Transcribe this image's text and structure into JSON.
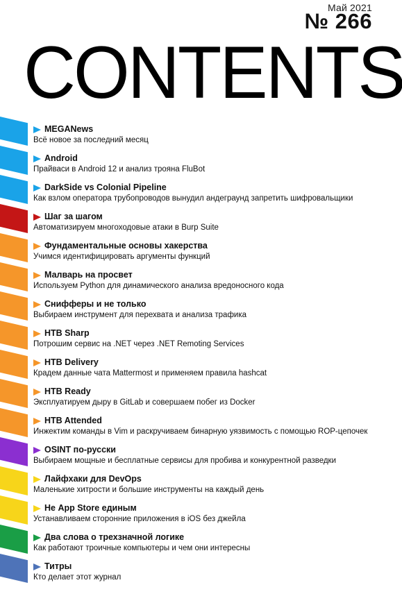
{
  "header": {
    "date": "Май 2021",
    "issue": "№ 266",
    "title": "CONTENTS"
  },
  "colors": {
    "blue": "#1aa3e8",
    "red": "#c41616",
    "orange": "#f5962a",
    "purple": "#8b2fd0",
    "yellow": "#f7d51a",
    "green": "#1a9e46",
    "slate": "#4e73b8"
  },
  "items": [
    {
      "title": "MEGANews",
      "subtitle": "Всё новое за последний месяц",
      "color": "#1aa3e8"
    },
    {
      "title": "Android",
      "subtitle": "Прайваси в Android 12 и анализ трояна FluBot",
      "color": "#1aa3e8"
    },
    {
      "title": "DarkSide vs Colonial Pipeline",
      "subtitle": "Как взлом оператора трубопроводов вынудил андеграунд запретить шифровальщики",
      "color": "#1aa3e8"
    },
    {
      "title": "Шаг за шагом",
      "subtitle": "Автоматизируем многоходовые атаки в Burp Suite",
      "color": "#c41616"
    },
    {
      "title": "Фундаментальные основы хакерства",
      "subtitle": "Учимся идентифицировать аргументы функций",
      "color": "#f5962a"
    },
    {
      "title": "Малварь на просвет",
      "subtitle": "Используем Python для динамического анализа вредоносного кода",
      "color": "#f5962a"
    },
    {
      "title": "Снифферы и не только",
      "subtitle": "Выбираем инструмент для перехвата и анализа трафика",
      "color": "#f5962a"
    },
    {
      "title": "HTB Sharp",
      "subtitle": "Потрошим сервис на .NET через .NET Remoting Services",
      "color": "#f5962a"
    },
    {
      "title": "HTB Delivery",
      "subtitle": "Крадем данные чата Mattermost и применяем правила hashcat",
      "color": "#f5962a"
    },
    {
      "title": "HTB Ready",
      "subtitle": "Эксплуатируем дыру в GitLab и совершаем побег из Docker",
      "color": "#f5962a"
    },
    {
      "title": "HTB Attended",
      "subtitle": "Инжектим команды в Vim и раскручиваем бинарную уязвимость с помощью ROP-цепочек",
      "color": "#f5962a"
    },
    {
      "title": "OSINT по-русски",
      "subtitle": "Выбираем мощные и бесплатные сервисы для пробива и конкурентной разведки",
      "color": "#8b2fd0"
    },
    {
      "title": "Лайфхаки для DevOps",
      "subtitle": "Маленькие хитрости и большие инструменты на каждый день",
      "color": "#f7d51a"
    },
    {
      "title": "Не App Store единым",
      "subtitle": "Устанавливаем сторонние приложения в iOS без джейла",
      "color": "#f7d51a"
    },
    {
      "title": "Два слова о трехзначной логике",
      "subtitle": "Как работают троичные компьютеры и чем они интересны",
      "color": "#1a9e46"
    },
    {
      "title": "Титры",
      "subtitle": "Кто делает этот журнал",
      "color": "#4e73b8"
    }
  ]
}
